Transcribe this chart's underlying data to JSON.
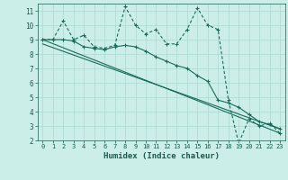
{
  "title": "",
  "xlabel": "Humidex (Indice chaleur)",
  "ylabel": "",
  "background_color": "#cceee8",
  "grid_color": "#aad8d0",
  "line_color": "#1a6b5a",
  "xlim": [
    -0.5,
    23.5
  ],
  "ylim": [
    2,
    11.5
  ],
  "yticks": [
    2,
    3,
    4,
    5,
    6,
    7,
    8,
    9,
    10,
    11
  ],
  "xticks": [
    0,
    1,
    2,
    3,
    4,
    5,
    6,
    7,
    8,
    9,
    10,
    11,
    12,
    13,
    14,
    15,
    16,
    17,
    18,
    19,
    20,
    21,
    22,
    23
  ],
  "series1_x": [
    0,
    1,
    2,
    3,
    4,
    5,
    6,
    7,
    8,
    9,
    10,
    11,
    12,
    13,
    14,
    15,
    16,
    17,
    18,
    19,
    20,
    21,
    22,
    23
  ],
  "series1_y": [
    9.0,
    9.0,
    10.3,
    9.0,
    9.3,
    8.5,
    8.4,
    8.6,
    11.3,
    10.0,
    9.4,
    9.7,
    8.7,
    8.7,
    9.7,
    11.2,
    10.0,
    9.7,
    4.8,
    1.8,
    3.5,
    3.0,
    3.2,
    2.5
  ],
  "series2_x": [
    0,
    1,
    2,
    3,
    4,
    5,
    6,
    7,
    8,
    9,
    10,
    11,
    12,
    13,
    14,
    15,
    16,
    17,
    18,
    19,
    20,
    21,
    22,
    23
  ],
  "series2_y": [
    9.0,
    9.0,
    9.0,
    8.9,
    8.5,
    8.4,
    8.3,
    8.5,
    8.6,
    8.5,
    8.2,
    7.8,
    7.5,
    7.2,
    7.0,
    6.5,
    6.1,
    4.8,
    4.6,
    4.3,
    3.8,
    3.3,
    3.1,
    2.8
  ],
  "series3_x": [
    0,
    23
  ],
  "series3_y": [
    9.0,
    2.5
  ],
  "series4_x": [
    0,
    23
  ],
  "series4_y": [
    8.7,
    2.8
  ]
}
